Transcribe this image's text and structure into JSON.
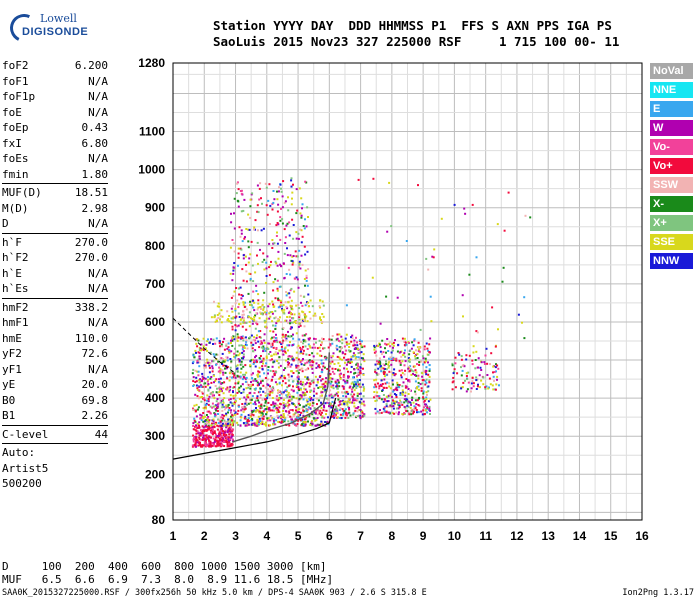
{
  "logo": {
    "line1": "Lowell",
    "line2": "DIGISONDE"
  },
  "header": {
    "line1": "Station YYYY DAY  DDD HHMMSS P1  FFS S AXN PPS IGA PS",
    "line2": "SaoLuis 2015 Nov23 327 225000 RSF     1 715 100 00- 11"
  },
  "params_group1": [
    {
      "key": "foF2",
      "value": "6.200"
    },
    {
      "key": "foF1",
      "value": "N/A"
    },
    {
      "key": "foF1p",
      "value": "N/A"
    },
    {
      "key": "foE",
      "value": "N/A"
    },
    {
      "key": "foEp",
      "value": "0.43"
    },
    {
      "key": "fxI",
      "value": "6.80"
    },
    {
      "key": "foEs",
      "value": "N/A"
    },
    {
      "key": "fmin",
      "value": "1.80"
    }
  ],
  "params_group2": [
    {
      "key": "MUF(D)",
      "value": "18.51"
    },
    {
      "key": "M(D)",
      "value": "2.98"
    },
    {
      "key": "D",
      "value": "N/A"
    }
  ],
  "params_group3": [
    {
      "key": "h`F",
      "value": "270.0"
    },
    {
      "key": "h`F2",
      "value": "270.0"
    },
    {
      "key": "h`E",
      "value": "N/A"
    },
    {
      "key": "h`Es",
      "value": "N/A"
    }
  ],
  "params_group4": [
    {
      "key": "hmF2",
      "value": "338.2"
    },
    {
      "key": "hmF1",
      "value": "N/A"
    },
    {
      "key": "hmE",
      "value": "110.0"
    },
    {
      "key": "yF2",
      "value": "72.6"
    },
    {
      "key": "yF1",
      "value": "N/A"
    },
    {
      "key": "yE",
      "value": "20.0"
    },
    {
      "key": "B0",
      "value": "69.8"
    },
    {
      "key": "B1",
      "value": "2.26"
    }
  ],
  "params_group5": [
    {
      "key": "C-level",
      "value": "44"
    }
  ],
  "auto": {
    "line1": "Auto:",
    "line2": "Artist5",
    "line3": "500200"
  },
  "legend": [
    {
      "label": "NoVal",
      "color": "#a8a8a8"
    },
    {
      "label": "NNE",
      "color": "#16e6f2"
    },
    {
      "label": "E",
      "color": "#39a7ef"
    },
    {
      "label": "W",
      "color": "#b000b0"
    },
    {
      "label": "Vo-",
      "color": "#f2419a"
    },
    {
      "label": "Vo+",
      "color": "#f20a3c"
    },
    {
      "label": "SSW",
      "color": "#f2b3b3"
    },
    {
      "label": "X-",
      "color": "#1a8a1a"
    },
    {
      "label": "X+",
      "color": "#7fc57f"
    },
    {
      "label": "SSE",
      "color": "#d8d81c"
    },
    {
      "label": "NNW",
      "color": "#1a1ad8"
    }
  ],
  "muf_table": {
    "line1": "D     100  200  400  600  800 1000 1500 3000 [km]",
    "line2": "MUF   6.5  6.6  6.9  7.3  8.0  8.9 11.6 18.5 [MHz]"
  },
  "footer": {
    "left": "SAA0K_2015327225000.RSF / 300fx256h 50 kHz 5.0 km / DPS-4 SAA0K 903 / 2.6 S 315.8 E",
    "right": "Ion2Png 1.3.17"
  },
  "chart_data": {
    "type": "scatter",
    "x_ticks": [
      1,
      2,
      3,
      4,
      5,
      6,
      7,
      8,
      9,
      10,
      11,
      12,
      13,
      14,
      15,
      16
    ],
    "y_ticks": [
      80,
      200,
      300,
      400,
      500,
      600,
      700,
      800,
      900,
      1000,
      1100,
      1280
    ],
    "x_range": [
      1,
      16
    ],
    "y_range": [
      80,
      1280
    ],
    "grid": true,
    "legend_position": "right",
    "profile_curve": [
      {
        "x": 1.0,
        "y": 240
      },
      {
        "x": 2.0,
        "y": 255
      },
      {
        "x": 3.0,
        "y": 270
      },
      {
        "x": 4.0,
        "y": 285
      },
      {
        "x": 5.0,
        "y": 305
      },
      {
        "x": 5.6,
        "y": 320
      },
      {
        "x": 6.0,
        "y": 335
      },
      {
        "x": 6.2,
        "y": 400
      }
    ],
    "trace_curve": [
      {
        "x": 2.9,
        "y": 285
      },
      {
        "x": 3.5,
        "y": 300
      },
      {
        "x": 4.0,
        "y": 315
      },
      {
        "x": 4.8,
        "y": 335
      },
      {
        "x": 5.4,
        "y": 360
      },
      {
        "x": 5.8,
        "y": 385
      },
      {
        "x": 5.95,
        "y": 430
      },
      {
        "x": 6.0,
        "y": 520
      }
    ],
    "dashed_curve": [
      {
        "x": 1.0,
        "y": 610
      },
      {
        "x": 1.5,
        "y": 570
      },
      {
        "x": 2.0,
        "y": 530
      },
      {
        "x": 2.5,
        "y": 495
      },
      {
        "x": 3.0,
        "y": 465
      }
    ],
    "echo_regions": [
      {
        "x0": 1.6,
        "x1": 2.9,
        "y0": 275,
        "y1": 330,
        "n": 320,
        "palette": "red"
      },
      {
        "x0": 1.6,
        "x1": 6.0,
        "y0": 330,
        "y1": 560,
        "n": 1500,
        "palette": "mixed"
      },
      {
        "x0": 2.8,
        "x1": 5.3,
        "y0": 560,
        "y1": 980,
        "n": 450,
        "palette": "mixed"
      },
      {
        "x0": 2.2,
        "x1": 5.8,
        "y0": 600,
        "y1": 660,
        "n": 160,
        "palette": "yellow"
      },
      {
        "x0": 6.0,
        "x1": 7.1,
        "y0": 350,
        "y1": 570,
        "n": 380,
        "palette": "mixed"
      },
      {
        "x0": 7.4,
        "x1": 9.2,
        "y0": 360,
        "y1": 560,
        "n": 480,
        "palette": "mixed"
      },
      {
        "x0": 9.9,
        "x1": 11.4,
        "y0": 420,
        "y1": 540,
        "n": 110,
        "palette": "mixed"
      },
      {
        "x0": 6.5,
        "x1": 12.6,
        "y0": 560,
        "y1": 980,
        "n": 45,
        "palette": "mixed"
      }
    ]
  }
}
